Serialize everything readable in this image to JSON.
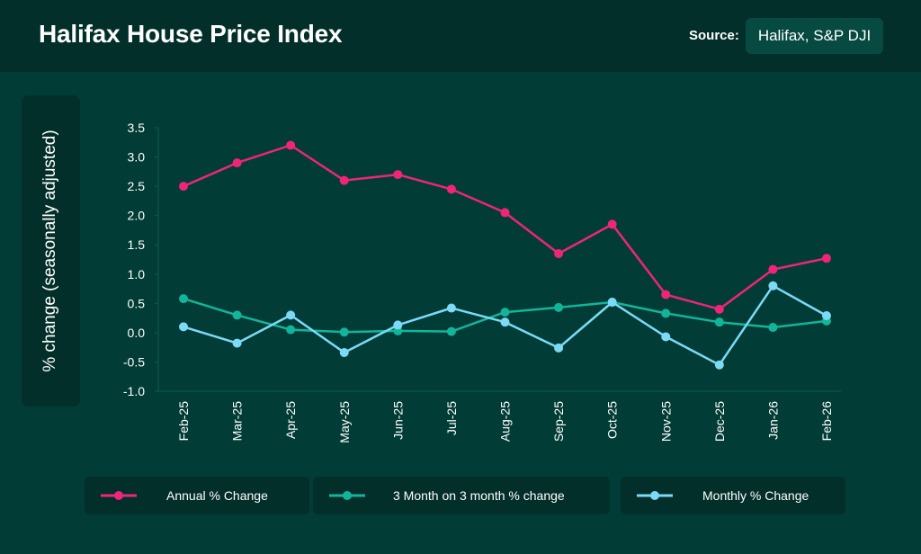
{
  "header": {
    "title": "Halifax House Price Index",
    "source_label": "Source:",
    "source_value": "Halifax, S&P DJI"
  },
  "colors": {
    "background": "#013d36",
    "panel": "#022f2a",
    "annual": "#f0247a",
    "three_month": "#12b59b",
    "monthly": "#7ddaf7"
  },
  "chart_data": {
    "type": "line",
    "ylabel": "% change (seasonally adjusted)",
    "xlabel": "",
    "ylim": [
      -1.0,
      3.5
    ],
    "yticks": [
      "3.5",
      "3.0",
      "2.5",
      "2.0",
      "1.5",
      "1.0",
      "0.5",
      "0.0",
      "-0.5",
      "-1.0"
    ],
    "ytick_values": [
      3.5,
      3.0,
      2.5,
      2.0,
      1.5,
      1.0,
      0.5,
      0.0,
      -0.5,
      -1.0
    ],
    "categories": [
      "Feb-25",
      "Mar-25",
      "Apr-25",
      "May-25",
      "Jun-25",
      "Jul-25",
      "Aug-25",
      "Sep-25",
      "Oct-25",
      "Nov-25",
      "Dec-25",
      "Jan-26",
      "Feb-26"
    ],
    "grid": false,
    "legend_position": "bottom",
    "series": [
      {
        "name": "Annual % Change",
        "color": "#f0247a",
        "values": [
          2.5,
          2.9,
          3.2,
          2.6,
          2.7,
          2.45,
          2.05,
          1.35,
          1.85,
          0.65,
          0.4,
          1.08,
          1.27
        ]
      },
      {
        "name": "3 Month on 3 month % change",
        "color": "#12b59b",
        "values": [
          0.58,
          0.3,
          0.05,
          0.01,
          0.03,
          0.02,
          0.35,
          0.43,
          0.52,
          0.33,
          0.18,
          0.09,
          0.2
        ]
      },
      {
        "name": "Monthly % Change",
        "color": "#7ddaf7",
        "values": [
          0.1,
          -0.18,
          0.3,
          -0.34,
          0.13,
          0.42,
          0.18,
          -0.26,
          0.52,
          -0.07,
          -0.55,
          0.8,
          0.29
        ]
      }
    ]
  }
}
